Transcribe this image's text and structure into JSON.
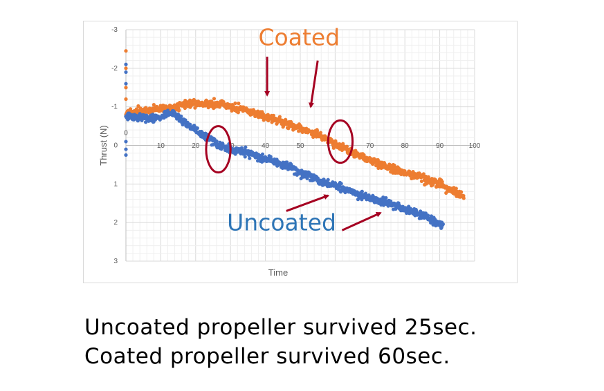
{
  "chart_data": {
    "type": "scatter",
    "xlabel": "Time",
    "ylabel": "Thrust (N)",
    "xlim": [
      0,
      100
    ],
    "ylim": [
      -3,
      3
    ],
    "y_inverted": true,
    "x_ticks": [
      "0",
      "10",
      "20",
      "30",
      "40",
      "50",
      "60",
      "70",
      "80",
      "90",
      "100"
    ],
    "y_ticks": [
      "-3",
      "-2",
      "-1",
      "0",
      "1",
      "2",
      "3"
    ],
    "grid": true,
    "series": [
      {
        "name": "Coated",
        "color": "#ED7D31",
        "trend": [
          [
            0,
            -0.85
          ],
          [
            14,
            -1.0
          ],
          [
            20,
            -1.1
          ],
          [
            28,
            -1.05
          ],
          [
            35,
            -0.9
          ],
          [
            45,
            -0.6
          ],
          [
            55,
            -0.3
          ],
          [
            62,
            0.05
          ],
          [
            70,
            0.4
          ],
          [
            80,
            0.7
          ],
          [
            90,
            1.0
          ],
          [
            97,
            1.35
          ]
        ],
        "x_range": [
          0,
          97
        ],
        "spread": 0.1,
        "outliers": [
          [
            0,
            -2.45
          ],
          [
            0,
            -2.0
          ],
          [
            0,
            -1.5
          ],
          [
            0,
            -1.2
          ]
        ]
      },
      {
        "name": "Uncoated",
        "color": "#4472C4",
        "trend": [
          [
            0,
            -0.75
          ],
          [
            8,
            -0.7
          ],
          [
            13,
            -0.85
          ],
          [
            16,
            -0.65
          ],
          [
            20,
            -0.4
          ],
          [
            25,
            -0.1
          ],
          [
            28,
            0.05
          ],
          [
            35,
            0.2
          ],
          [
            45,
            0.5
          ],
          [
            55,
            0.9
          ],
          [
            65,
            1.2
          ],
          [
            75,
            1.5
          ],
          [
            85,
            1.8
          ],
          [
            91,
            2.1
          ]
        ],
        "x_range": [
          0,
          91
        ],
        "spread": 0.1,
        "outliers": [
          [
            0,
            -2.1
          ],
          [
            0,
            -1.9
          ],
          [
            0,
            -1.6
          ],
          [
            0,
            0.1
          ],
          [
            0,
            0.25
          ],
          [
            0,
            -0.1
          ]
        ]
      }
    ],
    "annotations": [
      {
        "text": "Coated",
        "color": "#ED7D31",
        "at": [
          38,
          -2.6
        ]
      },
      {
        "text": "Uncoated",
        "color": "#2E75B6",
        "at": [
          29,
          2.2
        ]
      }
    ],
    "arrow_color": "#A50021",
    "circle_color": "#A50021",
    "arrows": [
      {
        "from": [
          40.5,
          -2.3
        ],
        "to": [
          40.5,
          -1.3
        ]
      },
      {
        "from": [
          55,
          -2.2
        ],
        "to": [
          53,
          -1.0
        ]
      },
      {
        "from": [
          46,
          1.7
        ],
        "to": [
          58,
          1.3
        ]
      },
      {
        "from": [
          62,
          2.2
        ],
        "to": [
          73,
          1.75
        ]
      }
    ],
    "circles": [
      {
        "center": [
          26.5,
          0.1
        ],
        "rx": 3.5,
        "ry": 0.6
      },
      {
        "center": [
          61.5,
          -0.1
        ],
        "rx": 3.5,
        "ry": 0.55
      }
    ]
  },
  "captions": [
    "Uncoated propeller survived 25sec.",
    "Coated propeller survived 60sec."
  ]
}
